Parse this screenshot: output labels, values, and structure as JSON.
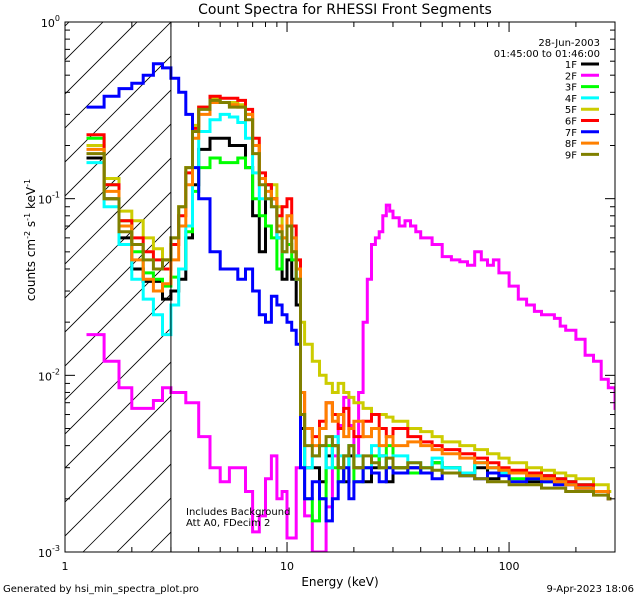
{
  "chart_data": {
    "type": "line",
    "title": "Count Spectra for RHESSI Front Segments",
    "xlabel": "Energy (keV)",
    "ylabel_parts": [
      "counts cm",
      "-2",
      " s",
      "-1",
      " keV",
      "-1"
    ],
    "xscale": "log",
    "yscale": "log",
    "xlim": [
      1,
      300
    ],
    "ylim": [
      0.001,
      1
    ],
    "x_ticks": [
      {
        "value": 1,
        "label": "1"
      },
      {
        "value": 10,
        "label": "10"
      },
      {
        "value": 100,
        "label": "100"
      }
    ],
    "y_ticks": [
      {
        "value": 1,
        "base": "10",
        "exp": "0"
      },
      {
        "value": 0.1,
        "base": "10",
        "exp": "-1"
      },
      {
        "value": 0.01,
        "base": "10",
        "exp": "-2"
      },
      {
        "value": 0.001,
        "base": "10",
        "exp": "-3"
      }
    ],
    "shaded_region_upper_kev": 3,
    "info_lines": [
      "28-Jun-2003",
      "01:45:00 to 01:46:00"
    ],
    "annotations": [
      "Includes Background",
      "Att A0, FDecim 2"
    ],
    "legend_placement": "top-right",
    "series": [
      {
        "name": "1F",
        "color": "#000000",
        "x": [
          1.25,
          1.5,
          1.75,
          2.0,
          2.25,
          2.5,
          2.75,
          3.0,
          3.25,
          3.5,
          3.75,
          4.0,
          4.5,
          5.0,
          5.5,
          6.0,
          6.5,
          7.0,
          7.5,
          8.0,
          8.5,
          9.0,
          9.5,
          10.0,
          10.5,
          11.0,
          11.5,
          12.0,
          13,
          14,
          15,
          16,
          17,
          18,
          19,
          20,
          22,
          24,
          26,
          28,
          30,
          35,
          40,
          45,
          50,
          60,
          70,
          80,
          90,
          100,
          120,
          140,
          160,
          180,
          200,
          240,
          280
        ],
        "y": [
          0.17,
          0.1,
          0.06,
          0.04,
          0.034,
          0.034,
          0.027,
          0.03,
          0.035,
          0.06,
          0.12,
          0.19,
          0.22,
          0.22,
          0.2,
          0.2,
          0.15,
          0.08,
          0.05,
          0.12,
          0.1,
          0.06,
          0.035,
          0.045,
          0.035,
          0.025,
          0.005,
          0.003,
          0.003,
          0.0025,
          0.0035,
          0.004,
          0.003,
          0.0025,
          0.0035,
          0.003,
          0.0025,
          0.003,
          0.0035,
          0.0025,
          0.003,
          0.003,
          0.0028,
          0.0032,
          0.003,
          0.0028,
          0.003,
          0.0026,
          0.0028,
          0.0028,
          0.0025,
          0.0027,
          0.0025,
          0.0025,
          0.0023,
          0.0022,
          0.002
        ]
      },
      {
        "name": "2F",
        "color": "#ff00ff",
        "x": [
          1.25,
          1.5,
          1.75,
          2.0,
          2.25,
          2.5,
          2.75,
          3.0,
          3.5,
          4.0,
          4.5,
          5.0,
          5.5,
          6.0,
          6.5,
          7.0,
          7.5,
          8.0,
          8.5,
          9.0,
          9.5,
          10.0,
          11.0,
          12.0,
          13,
          14,
          15,
          16,
          17,
          18,
          19,
          20,
          21,
          22,
          23,
          24,
          25,
          26,
          27,
          28,
          29,
          30,
          32,
          34,
          36,
          38,
          40,
          45,
          50,
          55,
          60,
          65,
          70,
          75,
          80,
          85,
          90,
          100,
          110,
          120,
          130,
          140,
          150,
          160,
          170,
          180,
          200,
          220,
          240,
          260,
          280,
          300
        ],
        "y": [
          0.017,
          0.012,
          0.0085,
          0.0065,
          0.0065,
          0.0072,
          0.0085,
          0.008,
          0.007,
          0.0045,
          0.003,
          0.0025,
          0.003,
          0.003,
          0.0022,
          0.0013,
          0.0016,
          0.0026,
          0.0035,
          0.002,
          0.0022,
          0.0012,
          0.003,
          0.0016,
          0.001,
          0.001,
          0.0018,
          0.0035,
          0.0052,
          0.0075,
          0.0052,
          0.0035,
          0.008,
          0.02,
          0.035,
          0.055,
          0.06,
          0.065,
          0.08,
          0.092,
          0.085,
          0.078,
          0.07,
          0.075,
          0.07,
          0.065,
          0.06,
          0.055,
          0.047,
          0.045,
          0.044,
          0.042,
          0.05,
          0.045,
          0.042,
          0.045,
          0.038,
          0.032,
          0.027,
          0.025,
          0.023,
          0.022,
          0.022,
          0.021,
          0.019,
          0.018,
          0.016,
          0.013,
          0.012,
          0.0095,
          0.0085,
          0.0065
        ]
      },
      {
        "name": "3F",
        "color": "#00ff00",
        "x": [
          1.25,
          1.5,
          1.75,
          2.0,
          2.25,
          2.5,
          2.75,
          3.0,
          3.25,
          3.5,
          3.75,
          4.0,
          4.5,
          5.0,
          5.5,
          6.0,
          6.5,
          7.0,
          7.5,
          8.0,
          8.5,
          9.0,
          9.5,
          10.0,
          10.5,
          11.0,
          11.5,
          12.0,
          13,
          14,
          15,
          16,
          17,
          18,
          19,
          20,
          22,
          24,
          26,
          28,
          30,
          35,
          40,
          45,
          50,
          60,
          70,
          80,
          90,
          100,
          120,
          140,
          160,
          180,
          200,
          240,
          280
        ],
        "y": [
          0.22,
          0.12,
          0.075,
          0.05,
          0.038,
          0.035,
          0.032,
          0.036,
          0.04,
          0.065,
          0.11,
          0.15,
          0.17,
          0.16,
          0.16,
          0.17,
          0.15,
          0.1,
          0.08,
          0.07,
          0.06,
          0.04,
          0.05,
          0.055,
          0.045,
          0.035,
          0.006,
          0.002,
          0.0015,
          0.002,
          0.004,
          0.003,
          0.0025,
          0.0035,
          0.004,
          0.0025,
          0.003,
          0.0035,
          0.003,
          0.004,
          0.003,
          0.0028,
          0.003,
          0.0032,
          0.003,
          0.0028,
          0.0032,
          0.003,
          0.0028,
          0.0026,
          0.0027,
          0.0025,
          0.0026,
          0.0025,
          0.0024,
          0.0022,
          0.002
        ]
      },
      {
        "name": "4F",
        "color": "#00ffff",
        "x": [
          1.25,
          1.5,
          1.75,
          2.0,
          2.25,
          2.5,
          2.75,
          3.0,
          3.25,
          3.5,
          3.75,
          4.0,
          4.5,
          5.0,
          5.5,
          6.0,
          6.5,
          7.0,
          7.5,
          8.0,
          8.5,
          9.0,
          9.5,
          10.0,
          10.5,
          11.0,
          11.5,
          12.0,
          13,
          14,
          15,
          16,
          17,
          18,
          19,
          20,
          22,
          24,
          26,
          28,
          30,
          35,
          40,
          45,
          50,
          60,
          70,
          80,
          90,
          100,
          120,
          140,
          160,
          180,
          200,
          240,
          280
        ],
        "y": [
          0.16,
          0.09,
          0.055,
          0.035,
          0.027,
          0.022,
          0.017,
          0.025,
          0.04,
          0.07,
          0.15,
          0.24,
          0.28,
          0.3,
          0.29,
          0.27,
          0.22,
          0.14,
          0.1,
          0.1,
          0.09,
          0.06,
          0.05,
          0.08,
          0.06,
          0.035,
          0.006,
          0.003,
          0.0035,
          0.004,
          0.003,
          0.0045,
          0.0035,
          0.003,
          0.004,
          0.0035,
          0.003,
          0.004,
          0.0035,
          0.003,
          0.0035,
          0.0032,
          0.003,
          0.0034,
          0.003,
          0.0028,
          0.0032,
          0.003,
          0.0028,
          0.0028,
          0.0026,
          0.0025,
          0.0026,
          0.0025,
          0.0024,
          0.0022,
          0.002
        ]
      },
      {
        "name": "5F",
        "color": "#cccc00",
        "x": [
          1.25,
          1.5,
          1.75,
          2.0,
          2.25,
          2.5,
          2.75,
          3.0,
          3.25,
          3.5,
          3.75,
          4.0,
          4.5,
          5.0,
          5.5,
          6.0,
          6.5,
          7.0,
          7.5,
          8.0,
          8.5,
          9.0,
          9.5,
          10.0,
          10.5,
          11.0,
          11.5,
          12.0,
          13,
          14,
          15,
          16,
          17,
          18,
          19,
          20,
          22,
          24,
          26,
          28,
          30,
          35,
          40,
          45,
          50,
          60,
          70,
          80,
          90,
          100,
          120,
          140,
          160,
          180,
          200,
          240,
          280
        ],
        "y": [
          0.2,
          0.13,
          0.085,
          0.075,
          0.06,
          0.052,
          0.045,
          0.06,
          0.09,
          0.15,
          0.26,
          0.33,
          0.37,
          0.35,
          0.35,
          0.34,
          0.3,
          0.2,
          0.13,
          0.12,
          0.12,
          0.09,
          0.06,
          0.07,
          0.05,
          0.04,
          0.02,
          0.015,
          0.012,
          0.01,
          0.009,
          0.008,
          0.009,
          0.008,
          0.0075,
          0.007,
          0.0065,
          0.006,
          0.006,
          0.0058,
          0.0055,
          0.005,
          0.0048,
          0.0045,
          0.0042,
          0.004,
          0.0038,
          0.0036,
          0.0034,
          0.0032,
          0.003,
          0.0029,
          0.0028,
          0.0027,
          0.0026,
          0.0024,
          0.0022
        ]
      },
      {
        "name": "6F",
        "color": "#ff0000",
        "x": [
          1.25,
          1.5,
          1.75,
          2.0,
          2.25,
          2.5,
          2.75,
          3.0,
          3.25,
          3.5,
          3.75,
          4.0,
          4.5,
          5.0,
          5.5,
          6.0,
          6.5,
          7.0,
          7.5,
          8.0,
          8.5,
          9.0,
          9.5,
          10.0,
          10.5,
          11.0,
          11.5,
          12.0,
          13,
          14,
          15,
          16,
          17,
          18,
          19,
          20,
          22,
          24,
          26,
          28,
          30,
          35,
          40,
          45,
          50,
          60,
          70,
          80,
          90,
          100,
          120,
          140,
          160,
          180,
          200,
          240,
          280
        ],
        "y": [
          0.23,
          0.12,
          0.075,
          0.06,
          0.05,
          0.045,
          0.04,
          0.055,
          0.08,
          0.14,
          0.25,
          0.33,
          0.38,
          0.37,
          0.37,
          0.36,
          0.32,
          0.22,
          0.14,
          0.12,
          0.1,
          0.08,
          0.09,
          0.1,
          0.07,
          0.045,
          0.008,
          0.005,
          0.0045,
          0.0055,
          0.007,
          0.006,
          0.005,
          0.0065,
          0.005,
          0.0045,
          0.0055,
          0.006,
          0.005,
          0.0045,
          0.005,
          0.0045,
          0.0042,
          0.004,
          0.0038,
          0.0036,
          0.0034,
          0.0032,
          0.003,
          0.0029,
          0.0028,
          0.0027,
          0.0026,
          0.0025,
          0.0024,
          0.0022,
          0.002
        ]
      },
      {
        "name": "7F",
        "color": "#0000ff",
        "x": [
          1.25,
          1.5,
          1.75,
          2.0,
          2.25,
          2.5,
          2.75,
          3.0,
          3.25,
          3.5,
          3.75,
          4.0,
          4.5,
          5.0,
          5.5,
          6.0,
          6.5,
          7.0,
          7.5,
          8.0,
          8.5,
          9.0,
          9.5,
          10.0,
          10.5,
          11.0,
          11.5,
          12.0,
          13,
          14,
          15,
          16,
          17,
          18,
          19,
          20,
          22,
          24,
          26,
          28,
          30,
          35,
          40,
          45,
          50,
          60,
          70,
          80,
          90,
          100,
          120,
          140,
          160,
          180,
          200,
          240,
          280
        ],
        "y": [
          0.33,
          0.38,
          0.42,
          0.45,
          0.5,
          0.58,
          0.55,
          0.48,
          0.4,
          0.3,
          0.15,
          0.1,
          0.05,
          0.04,
          0.04,
          0.035,
          0.04,
          0.03,
          0.022,
          0.02,
          0.028,
          0.025,
          0.022,
          0.02,
          0.018,
          0.015,
          0.003,
          0.002,
          0.0025,
          0.002,
          0.0015,
          0.002,
          0.0025,
          0.003,
          0.002,
          0.0025,
          0.003,
          0.0028,
          0.0025,
          0.003,
          0.0028,
          0.003,
          0.0028,
          0.0026,
          0.0028,
          0.0027,
          0.0026,
          0.0028,
          0.0027,
          0.0025,
          0.0026,
          0.0025,
          0.0024,
          0.0024,
          0.0023,
          0.0022,
          0.002
        ]
      },
      {
        "name": "8F",
        "color": "#ff8000",
        "x": [
          1.25,
          1.5,
          1.75,
          2.0,
          2.25,
          2.5,
          2.75,
          3.0,
          3.25,
          3.5,
          3.75,
          4.0,
          4.5,
          5.0,
          5.5,
          6.0,
          6.5,
          7.0,
          7.5,
          8.0,
          8.5,
          9.0,
          9.5,
          10.0,
          10.5,
          11.0,
          11.5,
          12.0,
          13,
          14,
          15,
          16,
          17,
          18,
          19,
          20,
          22,
          24,
          26,
          28,
          30,
          35,
          40,
          45,
          50,
          60,
          70,
          80,
          90,
          100,
          120,
          140,
          160,
          180,
          200,
          240,
          280
        ],
        "y": [
          0.19,
          0.11,
          0.07,
          0.045,
          0.035,
          0.03,
          0.033,
          0.045,
          0.07,
          0.12,
          0.22,
          0.3,
          0.35,
          0.35,
          0.34,
          0.33,
          0.3,
          0.2,
          0.13,
          0.11,
          0.1,
          0.07,
          0.06,
          0.08,
          0.06,
          0.04,
          0.008,
          0.005,
          0.004,
          0.005,
          0.007,
          0.0055,
          0.006,
          0.0045,
          0.005,
          0.0055,
          0.0045,
          0.005,
          0.004,
          0.0045,
          0.004,
          0.0042,
          0.004,
          0.0038,
          0.0036,
          0.0034,
          0.0032,
          0.003,
          0.0029,
          0.0028,
          0.0027,
          0.0026,
          0.0025,
          0.0024,
          0.0023,
          0.0022,
          0.002
        ]
      },
      {
        "name": "9F",
        "color": "#808000",
        "x": [
          1.25,
          1.5,
          1.75,
          2.0,
          2.25,
          2.5,
          2.75,
          3.0,
          3.25,
          3.5,
          3.75,
          4.0,
          4.5,
          5.0,
          5.5,
          6.0,
          6.5,
          7.0,
          7.5,
          8.0,
          8.5,
          9.0,
          9.5,
          10.0,
          10.5,
          11.0,
          11.5,
          12.0,
          13,
          14,
          15,
          16,
          17,
          18,
          19,
          20,
          22,
          24,
          26,
          28,
          30,
          35,
          40,
          45,
          50,
          60,
          70,
          80,
          90,
          100,
          120,
          140,
          160,
          180,
          200,
          240,
          280
        ],
        "y": [
          0.18,
          0.1,
          0.065,
          0.055,
          0.045,
          0.04,
          0.045,
          0.06,
          0.09,
          0.15,
          0.24,
          0.32,
          0.36,
          0.35,
          0.33,
          0.33,
          0.28,
          0.18,
          0.12,
          0.1,
          0.09,
          0.065,
          0.05,
          0.07,
          0.05,
          0.035,
          0.006,
          0.004,
          0.0035,
          0.004,
          0.0045,
          0.004,
          0.003,
          0.0035,
          0.004,
          0.003,
          0.0035,
          0.0032,
          0.003,
          0.0034,
          0.003,
          0.0032,
          0.003,
          0.0029,
          0.0028,
          0.0027,
          0.0026,
          0.0025,
          0.0025,
          0.0024,
          0.0024,
          0.0023,
          0.0023,
          0.0022,
          0.0022,
          0.0021,
          0.002
        ]
      }
    ]
  },
  "footer": {
    "generated": "Generated by hsi_min_spectra_plot.pro",
    "date": "9-Apr-2023 18:06"
  }
}
